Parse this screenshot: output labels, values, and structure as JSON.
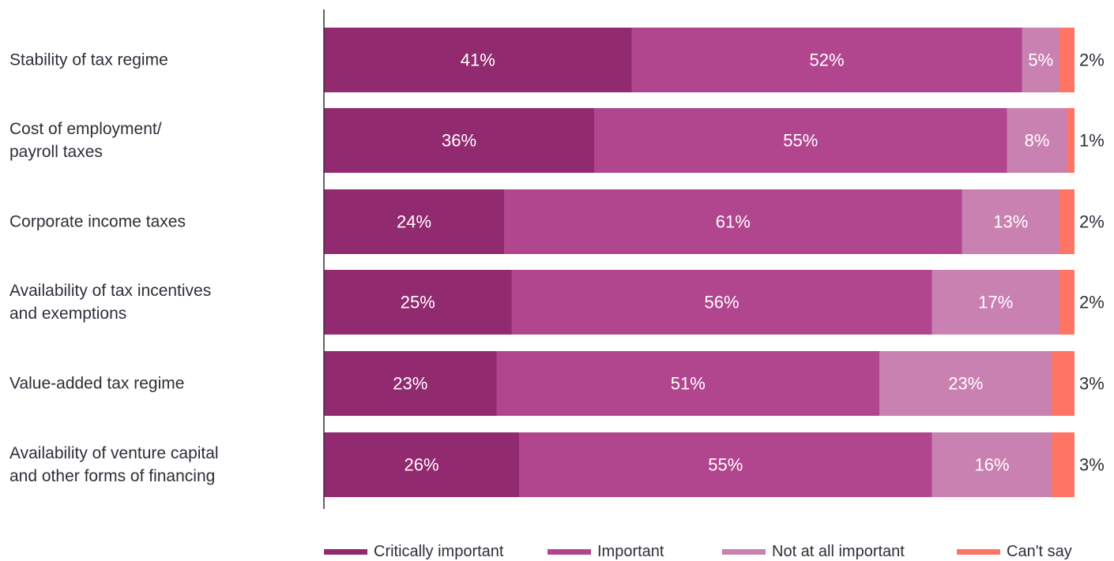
{
  "chart_data": {
    "type": "bar",
    "orientation": "horizontal",
    "stacked": true,
    "categories": [
      [
        "Stability of tax regime"
      ],
      [
        "Cost of employment/",
        "payroll taxes"
      ],
      [
        "Corporate income taxes"
      ],
      [
        "Availability of tax incentives",
        "and exemptions"
      ],
      [
        "Value-added tax regime"
      ],
      [
        "Availability of venture capital",
        "and other forms of financing"
      ]
    ],
    "series": [
      {
        "name": "Critically important",
        "color": "#912a6f",
        "values": [
          41,
          36,
          24,
          25,
          23,
          26
        ]
      },
      {
        "name": "Important",
        "color": "#b1468f",
        "values": [
          52,
          55,
          61,
          56,
          51,
          55
        ]
      },
      {
        "name": "Not at all important",
        "color": "#c981b2",
        "values": [
          5,
          8,
          13,
          17,
          23,
          16
        ]
      },
      {
        "name": "Can't say",
        "color": "#ff7463",
        "values": [
          2,
          1,
          2,
          2,
          3,
          3
        ]
      }
    ],
    "data_labels": [
      [
        "41%",
        "52%",
        "5%",
        "2%"
      ],
      [
        "36%",
        "55%",
        "8%",
        "1%"
      ],
      [
        "24%",
        "61%",
        "13%",
        "2%"
      ],
      [
        "25%",
        "56%",
        "17%",
        "2%"
      ],
      [
        "23%",
        "51%",
        "23%",
        "3%"
      ],
      [
        "26%",
        "55%",
        "16%",
        "3%"
      ]
    ],
    "xlim": [
      0,
      100
    ],
    "grid": false,
    "legend_position": "bottom"
  }
}
